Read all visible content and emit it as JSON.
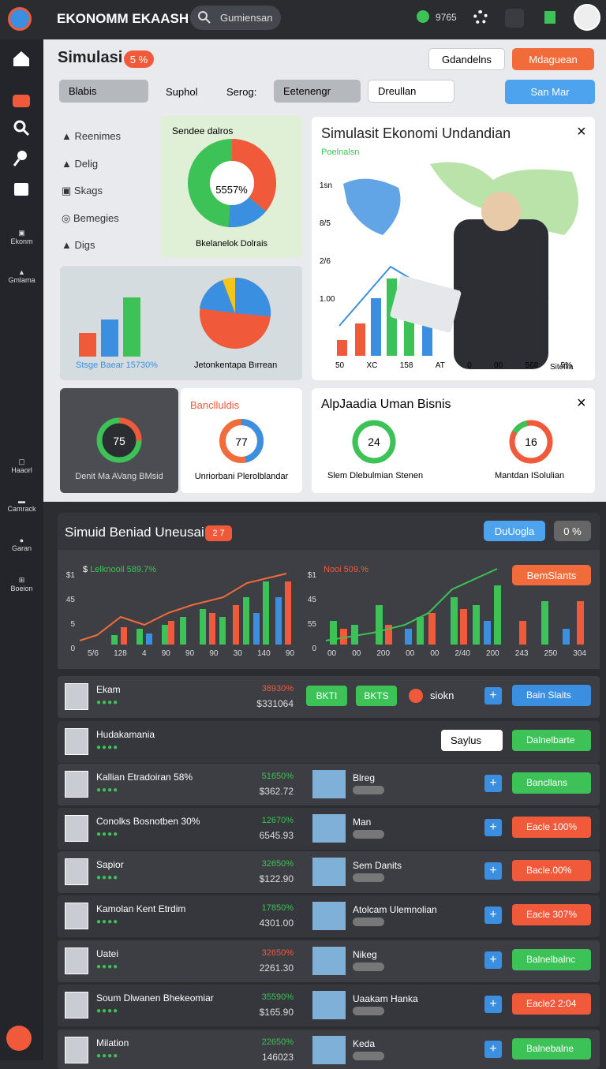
{
  "header": {
    "logo": "EKONOMM EKAASH",
    "search": "Gumiensan",
    "stat": "9765"
  },
  "sidebar": {
    "items": [
      "Ekonm",
      "Gmlama",
      "Haaorl",
      "Camrack",
      "Garan",
      "Boeion"
    ]
  },
  "top": {
    "title": "Simulasi",
    "badge": "5 %",
    "button_1": "Gdandelns",
    "button_2": "Mdaguean",
    "filters": {
      "select_1": "Blabis",
      "label_1": "Suphol",
      "label_2": "Serog:",
      "select_2": "Eetenengr",
      "select_3": "Dreullan",
      "select_4": "San Mar"
    },
    "menu": [
      "Reenimes",
      "Delig",
      "Skags",
      "Bemegies",
      "Digs"
    ]
  },
  "donut_card": {
    "title": "Sendee dalros",
    "center": "5557%",
    "caption": "Bkelanelok Dolrais"
  },
  "bars_card": {
    "caption_1": "Stsge Baear 15730%",
    "caption_2": "Jetonkentapa Bırrean"
  },
  "map_panel": {
    "title": "Simulasit Ekonomi Undandian",
    "tag": "Poelnalsn",
    "y_labels": [
      "1sn",
      "8/5",
      "2/6",
      "1.00"
    ],
    "x_labels": [
      "50",
      "XC",
      "158",
      "AT",
      "0",
      "00",
      "568",
      "5%"
    ],
    "figure_label": "Sitellia"
  },
  "small_cards": {
    "card_1": {
      "value": "75",
      "caption": "Denit Ma AVang BMsid"
    },
    "card_2": {
      "title": "Banclluldis",
      "value": "77",
      "caption": "Unriorbani Plerolblandar"
    },
    "card_3": {
      "title": "AlpJaadia Uman Bisnis",
      "value_1": "24",
      "caption_1": "Slem Dlebulmian Stenen",
      "value_2": "16",
      "caption_2": "Mantdan ISolulian"
    }
  },
  "dark_panel": {
    "title": "Simuid Beniad Uneusai",
    "badge": "2 7",
    "button_1": "DuUogla",
    "button_2": "0 %",
    "chart_1": {
      "title": "Lelknooil 589.7%",
      "y_labels": [
        "$1",
        "45",
        "5",
        "0"
      ],
      "x_labels": [
        "5/6",
        "128",
        "4",
        "90",
        "90",
        "90",
        "30",
        "140",
        "90"
      ]
    },
    "chart_2": {
      "title": "Nooi 509.%",
      "button": "BemSlants",
      "y_labels": [
        "$1",
        "45",
        "55",
        "0"
      ],
      "x_labels": [
        "00",
        "00",
        "200",
        "00",
        "00",
        "2/40",
        "200",
        "243",
        "250",
        "304"
      ]
    }
  },
  "rows": [
    {
      "name": "Ekam",
      "percent": "38930%",
      "percent_color": "#f05a3a",
      "amount": "$331064",
      "chips": [
        "BKTI",
        "BKTS"
      ],
      "status": "siokn",
      "action": "Bain Slaits",
      "action_color": "#3b8fe0"
    },
    {
      "name": "Hudakamania",
      "option": "Saylus",
      "action": "Dalnelbarte",
      "action_color": "#3cc257"
    },
    {
      "name": "Kallian Etradoiran 58%",
      "percent": "51650%",
      "percent_color": "#3cc257",
      "amount": "$362.72",
      "item": "Blreg",
      "action": "Bancllans",
      "action_color": "#3cc257"
    },
    {
      "name": "Conolks Bosnotben 30%",
      "percent": "12670%",
      "percent_color": "#3cc257",
      "amount": "6545.93",
      "item": "Man",
      "action": "Eacle 100%",
      "action_color": "#f05a3a"
    },
    {
      "name": "Sapior",
      "percent": "32650%",
      "percent_color": "#3cc257",
      "amount": "$122.90",
      "item": "Sem Danits",
      "action": "Bacle.00%",
      "action_color": "#f05a3a"
    },
    {
      "name": "Kamolan Kent Etrdim",
      "percent": "17850%",
      "percent_color": "#3cc257",
      "amount": "4301.00",
      "item": "Atolcam Ulemnolian",
      "action": "Eacle 307%",
      "action_color": "#f05a3a"
    },
    {
      "name": "Uatei",
      "percent": "32650%",
      "percent_color": "#f05a3a",
      "amount": "2261.30",
      "item": "Nikeg",
      "action": "Balnelbalnc",
      "action_color": "#3cc257"
    },
    {
      "name": "Soum Dlwanen Bhekeomiar",
      "percent": "35590%",
      "percent_color": "#3cc257",
      "amount": "$165.90",
      "item": "Uaakam Hanka",
      "action": "Eacle2 2:04",
      "action_color": "#f05a3a"
    },
    {
      "name": "Milation",
      "percent": "22650%",
      "percent_color": "#3cc257",
      "amount": "146023",
      "item": "Keda",
      "action": "Balnebalne",
      "action_color": "#3cc257"
    }
  ]
}
